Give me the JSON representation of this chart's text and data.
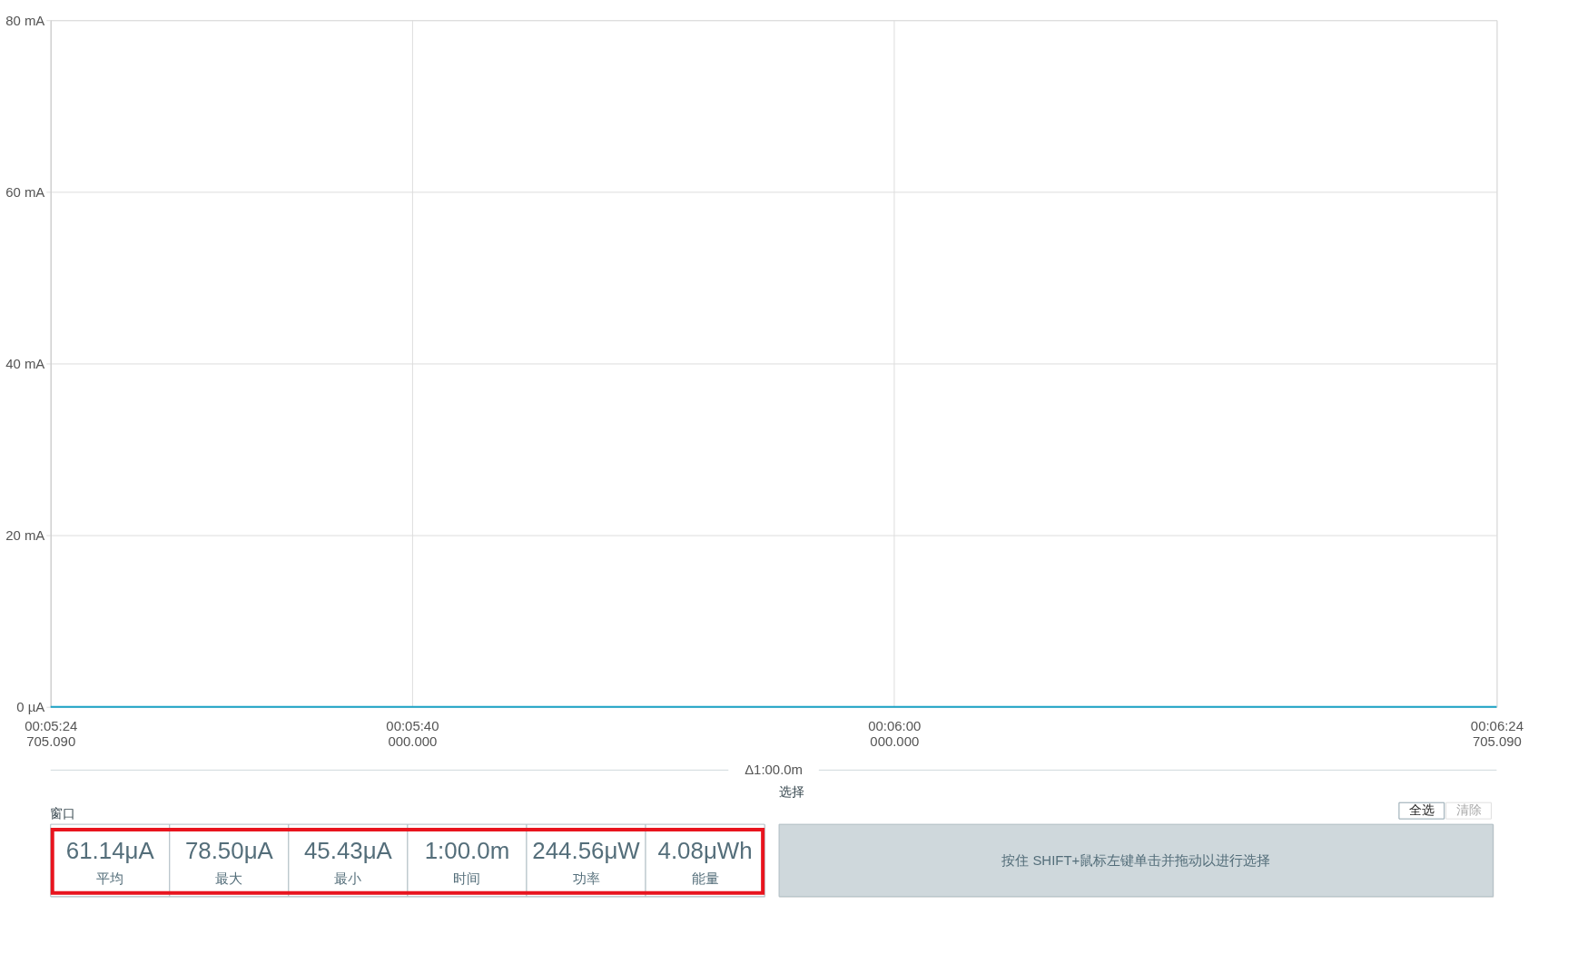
{
  "chart_data": [
    {
      "type": "line",
      "categories": [
        "00:05:24\n705.090",
        null,
        null,
        null,
        null,
        null,
        null,
        null,
        null,
        null,
        null,
        null,
        null,
        null,
        null,
        "00:05:40\n000.000",
        null,
        null,
        null,
        null,
        null,
        null,
        null,
        null,
        null,
        null,
        null,
        null,
        null,
        null,
        null,
        null,
        null,
        null,
        null,
        "00:06:00\n000.000",
        null,
        null,
        null,
        null,
        null,
        null,
        null,
        null,
        null,
        null,
        null,
        null,
        null,
        null,
        null,
        null,
        null,
        null,
        null,
        null,
        null,
        null,
        null,
        null,
        "00:06:24\n705.090"
      ],
      "series": [
        {
          "color": "#1ba3c6",
          "values": [
            0,
            0,
            0,
            0,
            0,
            0,
            0,
            0,
            0,
            0,
            0,
            0,
            0,
            0,
            0,
            0,
            0,
            0,
            0,
            0,
            0,
            0,
            0,
            0,
            0,
            0,
            0,
            0,
            0,
            0,
            0,
            0,
            0,
            0,
            0,
            0,
            0,
            0,
            0,
            0,
            0,
            0,
            0,
            0,
            0,
            0,
            0,
            0,
            0,
            0,
            0,
            0,
            0,
            0,
            0,
            0,
            0,
            0,
            0,
            0,
            0
          ]
        }
      ],
      "ylim": [
        0,
        80
      ],
      "yticks": [
        {
          "value": 0,
          "label": "0 µA"
        },
        {
          "value": 20,
          "label": "20 mA"
        },
        {
          "value": 40,
          "label": "40 mA"
        },
        {
          "value": 60,
          "label": "60 mA"
        },
        {
          "value": 80,
          "label": "80 mA"
        }
      ],
      "grid": true,
      "marker": "none",
      "line_style": "solid",
      "annotations": [
        "Δ1:00.0m"
      ]
    },
    {
      "type": "other",
      "title": "窗口",
      "annotations": [
        "61.14μA",
        "平均",
        "78.50μA",
        "最大",
        "45.43μA",
        "最小",
        "1:00.0m",
        "时间",
        "244.56μW",
        "功率",
        "4.08μWh",
        "能量"
      ]
    },
    {
      "type": "other",
      "title": "选择",
      "annotations": [
        "全选",
        "清除",
        "按住 SHIFT+鼠标左键单击并拖动以进行选择"
      ]
    }
  ]
}
